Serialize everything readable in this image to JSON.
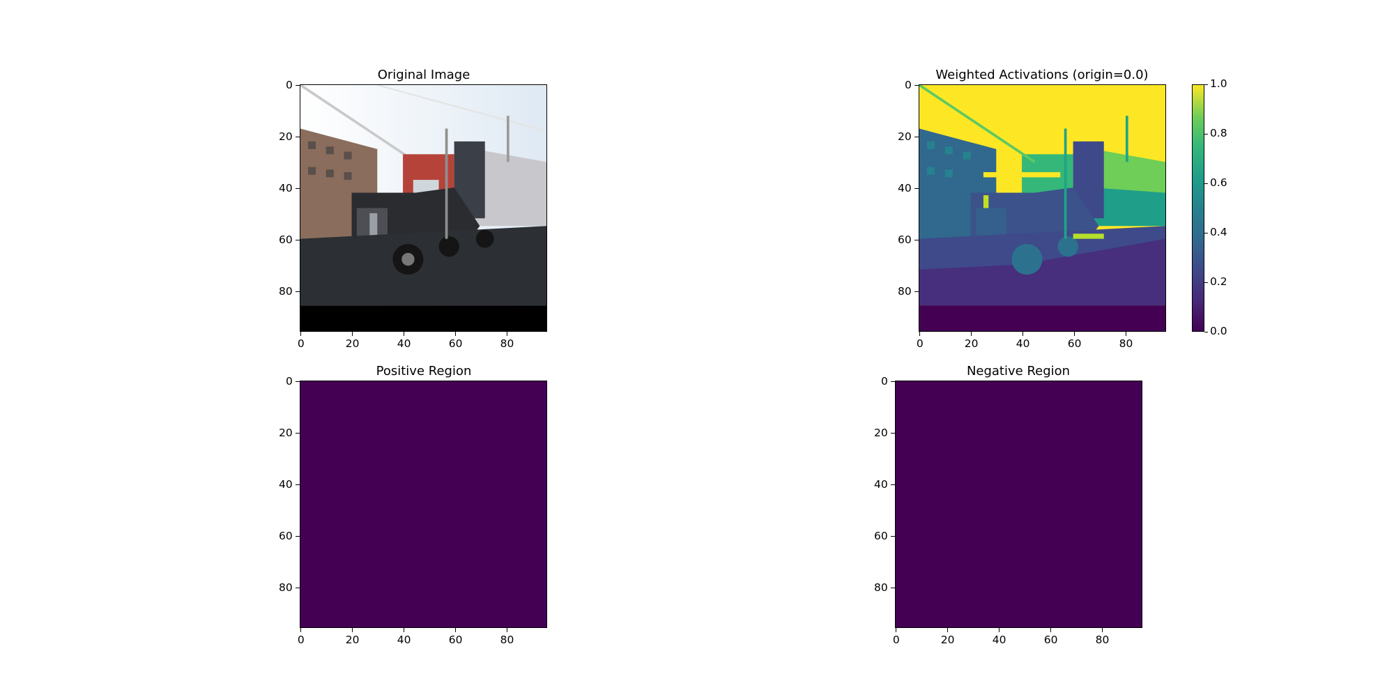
{
  "figure": {
    "panels": [
      {
        "id": "original",
        "title": "Original Image",
        "content": "photo",
        "xticks": [
          "0",
          "20",
          "40",
          "60",
          "80"
        ],
        "yticks": [
          "0",
          "20",
          "40",
          "60",
          "80"
        ]
      },
      {
        "id": "weighted",
        "title": "Weighted Activations (origin=0.0)",
        "content": "heatmap",
        "xticks": [
          "0",
          "20",
          "40",
          "60",
          "80"
        ],
        "yticks": [
          "0",
          "20",
          "40",
          "60",
          "80"
        ],
        "colorbar": {
          "ticks": [
            "0.0",
            "0.2",
            "0.4",
            "0.6",
            "0.8",
            "1.0"
          ],
          "colormap": "viridis",
          "range": [
            0.0,
            1.0
          ]
        }
      },
      {
        "id": "positive",
        "title": "Positive Region",
        "content": "flat",
        "fill": "#440154",
        "xticks": [
          "0",
          "20",
          "40",
          "60",
          "80"
        ],
        "yticks": [
          "0",
          "20",
          "40",
          "60",
          "80"
        ]
      },
      {
        "id": "negative",
        "title": "Negative Region",
        "content": "flat",
        "fill": "#440154",
        "xticks": [
          "0",
          "20",
          "40",
          "60",
          "80"
        ],
        "yticks": [
          "0",
          "20",
          "40",
          "60",
          "80"
        ]
      }
    ]
  },
  "colors": {
    "viridis_low": "#440154",
    "viridis_mid": "#21918c",
    "viridis_high": "#fde725"
  }
}
